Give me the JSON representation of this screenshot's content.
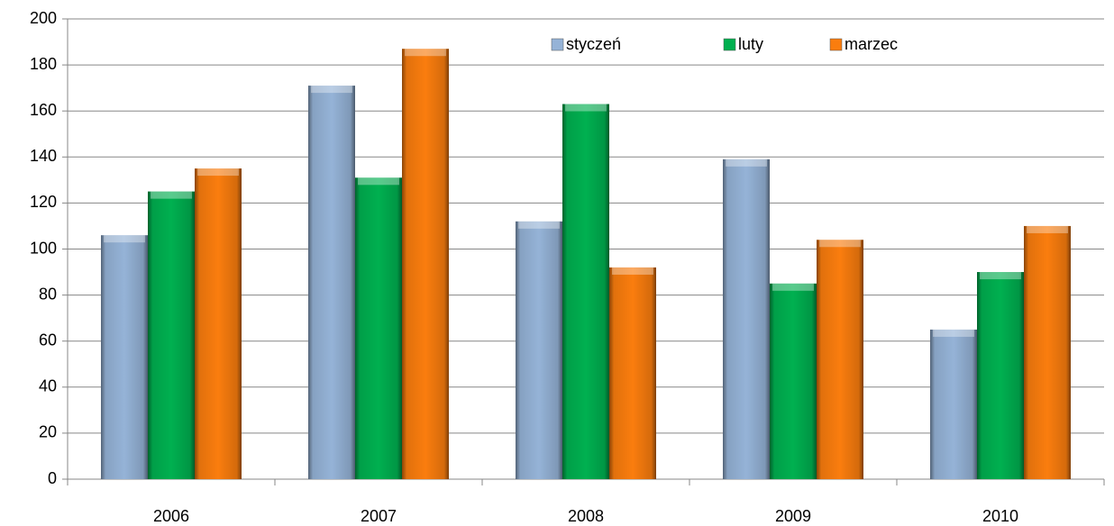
{
  "chart_data": {
    "type": "bar",
    "categories": [
      "2006",
      "2007",
      "2008",
      "2009",
      "2010"
    ],
    "series": [
      {
        "name": "styczeń",
        "color": "#95b3d7",
        "values": [
          106,
          171,
          112,
          139,
          65
        ]
      },
      {
        "name": "luty",
        "color": "#00b050",
        "values": [
          125,
          131,
          163,
          85,
          90
        ]
      },
      {
        "name": "marzec",
        "color": "#fa7d0e",
        "values": [
          135,
          187,
          92,
          104,
          110
        ]
      }
    ],
    "ylim": [
      0,
      200
    ],
    "yticks": [
      0,
      20,
      40,
      60,
      80,
      100,
      120,
      140,
      160,
      180,
      200
    ],
    "grid": true,
    "legend": "top"
  }
}
